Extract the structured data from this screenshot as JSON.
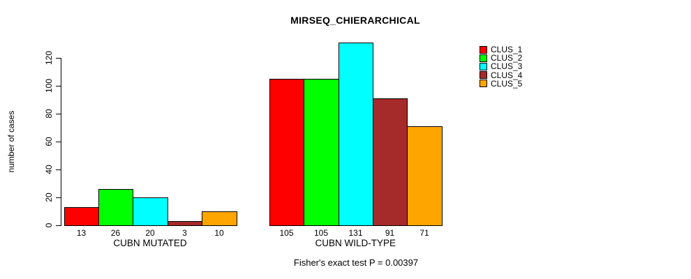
{
  "chart_data": {
    "type": "bar",
    "title": "MIRSEQ_CHIERARCHICAL",
    "subtitle": "Fisher's exact test P = 0.00397",
    "ylabel": "number of cases",
    "xlabel": "",
    "yticks": [
      0,
      20,
      40,
      60,
      80,
      100,
      120
    ],
    "ylim": [
      0,
      131
    ],
    "grid": false,
    "value_labels_shown": true,
    "legend_position": "top-right",
    "categories": [
      "CUBN MUTATED",
      "CUBN WILD-TYPE"
    ],
    "series": [
      {
        "name": "CLUS_1",
        "color": "#FF0000",
        "values": [
          13,
          105
        ]
      },
      {
        "name": "CLUS_2",
        "color": "#00FF00",
        "values": [
          26,
          105
        ]
      },
      {
        "name": "CLUS_3",
        "color": "#00FFFF",
        "values": [
          20,
          131
        ]
      },
      {
        "name": "CLUS_4",
        "color": "#A52A2A",
        "values": [
          3,
          91
        ]
      },
      {
        "name": "CLUS_5",
        "color": "#FFA500",
        "values": [
          10,
          71
        ]
      }
    ],
    "colors": {
      "background": "#FFFFFF",
      "axis": "#000000",
      "text": "#000000",
      "bar_border": "#000000"
    }
  }
}
